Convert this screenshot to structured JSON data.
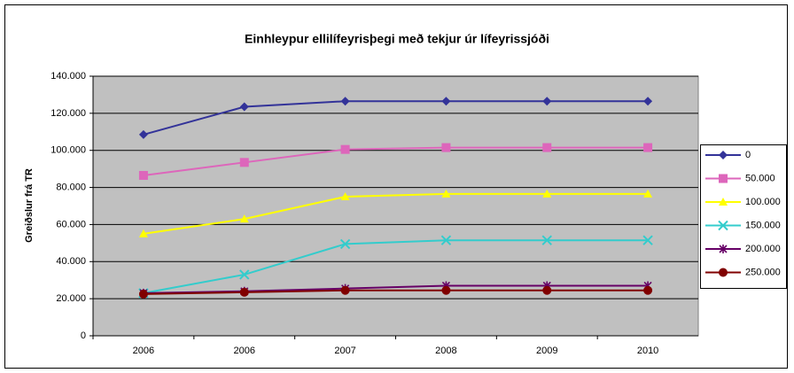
{
  "chart_data": {
    "type": "line",
    "title": "Einhleypur ellilífeyrisþegi með tekjur úr lífeyrissjóði",
    "y_label": "Greiðslur frá TR",
    "categories": [
      "2006",
      "2006",
      "2007",
      "2008",
      "2009",
      "2010"
    ],
    "series": [
      {
        "name": "0",
        "color": "#333399",
        "marker": "diamond",
        "values": [
          108500,
          123500,
          126500,
          126500,
          126500,
          126500
        ]
      },
      {
        "name": "50.000",
        "color": "#dd66bb",
        "marker": "square",
        "values": [
          86500,
          93500,
          100500,
          101500,
          101500,
          101500
        ]
      },
      {
        "name": "100.000",
        "color": "#ffff00",
        "marker": "triangle",
        "values": [
          55000,
          63000,
          75000,
          76500,
          76500,
          76500
        ]
      },
      {
        "name": "150.000",
        "color": "#33cccc",
        "marker": "x",
        "values": [
          23000,
          33000,
          49500,
          51500,
          51500,
          51500
        ]
      },
      {
        "name": "200.000",
        "color": "#660066",
        "marker": "star",
        "values": [
          23000,
          24000,
          25500,
          27000,
          27000,
          27000
        ]
      },
      {
        "name": "250.000",
        "color": "#800000",
        "marker": "circle",
        "values": [
          22500,
          23500,
          24500,
          24500,
          24500,
          24500
        ]
      }
    ],
    "ylim": [
      0,
      140000
    ],
    "yticks": [
      0,
      {
        "value": 20000,
        "label": "20.000"
      },
      {
        "value": 40000,
        "label": "40.000"
      },
      {
        "value": 60000,
        "label": "60.000"
      },
      {
        "value": 80000,
        "label": "80.000"
      },
      {
        "value": 100000,
        "label": "100.000"
      },
      {
        "value": 120000,
        "label": "120.000"
      },
      {
        "value": 140000,
        "label": "140.000"
      }
    ],
    "grid": true,
    "legend": "right"
  }
}
